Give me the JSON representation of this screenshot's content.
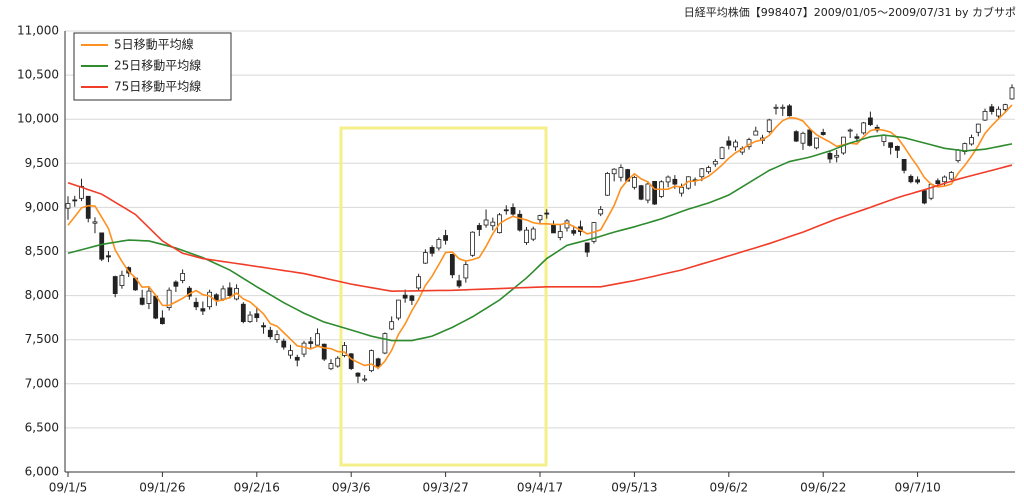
{
  "chart_data": {
    "type": "candlestick",
    "title": "日経平均株価【998407】2009/01/05～2009/07/31 by カブサポ",
    "categories": [
      "09/1/5",
      null,
      null,
      null,
      null,
      null,
      null,
      null,
      null,
      null,
      null,
      null,
      null,
      null,
      "09/1/26",
      null,
      null,
      null,
      null,
      null,
      null,
      null,
      null,
      null,
      null,
      null,
      null,
      null,
      "09/2/16",
      null,
      null,
      null,
      null,
      null,
      null,
      null,
      null,
      null,
      null,
      null,
      null,
      null,
      "09/3/6",
      null,
      null,
      null,
      null,
      null,
      null,
      null,
      null,
      null,
      null,
      null,
      null,
      null,
      "09/3/27",
      null,
      null,
      null,
      null,
      null,
      null,
      null,
      null,
      null,
      null,
      null,
      null,
      null,
      "09/4/17",
      null,
      null,
      null,
      null,
      null,
      null,
      null,
      null,
      null,
      null,
      null,
      null,
      null,
      "09/5/13",
      null,
      null,
      null,
      null,
      null,
      null,
      null,
      null,
      null,
      null,
      null,
      null,
      null,
      "09/6/2",
      null,
      null,
      null,
      null,
      null,
      null,
      null,
      null,
      null,
      null,
      null,
      null,
      null,
      "09/6/22",
      null,
      null,
      null,
      null,
      null,
      null,
      null,
      null,
      null,
      null,
      null,
      null,
      null,
      "09/7/10",
      null,
      null,
      null,
      null,
      null,
      null,
      null,
      null,
      null,
      null,
      null,
      null,
      null,
      null
    ],
    "candles": {
      "open": [
        8991,
        9085,
        9103,
        9126,
        8821,
        8711,
        8452,
        8216,
        8114,
        8317,
        8198,
        7972,
        7911,
        7993,
        7746,
        7864,
        8154,
        8171,
        8084,
        7924,
        7852,
        7874,
        8009,
        7961,
        8088,
        7962,
        7902,
        7705,
        7794,
        7660,
        7607,
        7501,
        7484,
        7325,
        7300,
        7337,
        7477,
        7439,
        7449,
        7171,
        7201,
        7321,
        7340,
        7121,
        7047,
        7149,
        7283,
        7349,
        7621,
        7746,
        8005,
        7997,
        8087,
        8368,
        8546,
        8540,
        8681,
        8467,
        8168,
        8200,
        8457,
        8795,
        8800,
        8792,
        8714,
        8973,
        8999,
        8922,
        8601,
        8640,
        8860,
        8936,
        8796,
        8658,
        8767,
        8738,
        8780,
        8597,
        8615,
        8926,
        9138,
        9382,
        9342,
        9429,
        9228,
        9246,
        9083,
        9295,
        9124,
        9289,
        9318,
        9162,
        9218,
        9313,
        9348,
        9405,
        9492,
        9555,
        9753,
        9686,
        9627,
        9688,
        9820,
        9760,
        9860,
        10128,
        10133,
        10151,
        9859,
        9728,
        9878,
        9675,
        9850,
        9612,
        9570,
        9617,
        9875,
        9801,
        9845,
        10014,
        9908,
        9747,
        9733,
        9692,
        9544,
        9352,
        9313,
        9190,
        9104,
        9303,
        9291,
        9322,
        9530,
        9633,
        9719,
        9852,
        9990,
        10141,
        10036,
        10110,
        10230
      ],
      "high": [
        9127,
        9131,
        9325,
        9126,
        8888,
        8711,
        8506,
        8226,
        8282,
        8331,
        8207,
        8066,
        8104,
        7995,
        7833,
        8092,
        8173,
        8297,
        8108,
        7976,
        7933,
        8067,
        8027,
        8114,
        8150,
        8128,
        7926,
        7822,
        7871,
        7696,
        7646,
        7607,
        7512,
        7443,
        7329,
        7486,
        7531,
        7628,
        7457,
        7279,
        7313,
        7474,
        7348,
        7131,
        7100,
        7387,
        7296,
        7582,
        7764,
        7950,
        8069,
        8008,
        8248,
        8525,
        8570,
        8660,
        8745,
        8473,
        8236,
        8389,
        8729,
        8824,
        8977,
        8884,
        8937,
        9024,
        9045,
        8969,
        8778,
        8782,
        8917,
        8979,
        8850,
        8813,
        8867,
        8794,
        8851,
        8600,
        8834,
        9015,
        9401,
        9445,
        9488,
        9437,
        9358,
        9255,
        9300,
        9296,
        9307,
        9362,
        9366,
        9270,
        9353,
        9340,
        9447,
        9473,
        9548,
        9690,
        9806,
        9768,
        9692,
        9790,
        9915,
        9823,
        10004,
        10170,
        10167,
        10170,
        9874,
        9858,
        9886,
        9787,
        9891,
        9640,
        9651,
        9798,
        9894,
        9836,
        9969,
        10086,
        9938,
        9826,
        9738,
        9701,
        9548,
        9374,
        9351,
        9193,
        9275,
        9329,
        9362,
        9411,
        9663,
        9735,
        9825,
        9950,
        10120,
        10173,
        10145,
        10175,
        10395
      ],
      "low": [
        8860,
        9008,
        9071,
        8831,
        8707,
        8391,
        8380,
        7981,
        8078,
        8211,
        8054,
        7889,
        7847,
        7733,
        7671,
        7831,
        8041,
        8141,
        7954,
        7835,
        7780,
        7842,
        7885,
        7939,
        7966,
        7946,
        7686,
        7691,
        7700,
        7568,
        7506,
        7463,
        7387,
        7284,
        7198,
        7303,
        7388,
        7427,
        7259,
        7155,
        7183,
        7301,
        7156,
        7008,
        7021,
        7132,
        7166,
        7336,
        7608,
        7720,
        7919,
        7893,
        8050,
        8360,
        8443,
        8511,
        8579,
        8197,
        8084,
        8147,
        8440,
        8676,
        8770,
        8740,
        8704,
        8918,
        8906,
        8726,
        8575,
        8618,
        8824,
        8872,
        8710,
        8627,
        8726,
        8680,
        8679,
        8439,
        8590,
        8901,
        9131,
        9295,
        9294,
        9294,
        9203,
        9082,
        9047,
        9028,
        9107,
        9228,
        9210,
        9123,
        9202,
        9246,
        9297,
        9381,
        9460,
        9546,
        9658,
        9642,
        9596,
        9655,
        9818,
        9720,
        9840,
        10053,
        10037,
        10031,
        9741,
        9652,
        9690,
        9658,
        9814,
        9504,
        9511,
        9597,
        9787,
        9738,
        9825,
        9922,
        9849,
        9695,
        9600,
        9560,
        9386,
        9273,
        9263,
        9036,
        9082,
        9233,
        9249,
        9310,
        9507,
        9598,
        9700,
        9806,
        9980,
        10052,
        10000,
        10071,
        10220
      ],
      "close": [
        9043,
        9080,
        9239,
        8876,
        8836,
        8413,
        8438,
        8023,
        8230,
        8256,
        8065,
        7901,
        8051,
        7745,
        7682,
        8061,
        8106,
        8251,
        7994,
        7873,
        7825,
        8038,
        7949,
        8076,
        8000,
        8082,
        7705,
        7779,
        7750,
        7645,
        7534,
        7557,
        7416,
        7376,
        7268,
        7461,
        7457,
        7568,
        7280,
        7229,
        7290,
        7433,
        7173,
        7086,
        7054,
        7376,
        7198,
        7569,
        7704,
        7949,
        7972,
        7945,
        8215,
        8488,
        8480,
        8636,
        8626,
        8236,
        8109,
        8351,
        8719,
        8749,
        8857,
        8833,
        8916,
        8964,
        8924,
        8743,
        8742,
        8755,
        8907,
        8924,
        8711,
        8727,
        8847,
        8707,
        8726,
        8493,
        8828,
        8977,
        9385,
        9433,
        9451,
        9298,
        9340,
        9093,
        9265,
        9038,
        9290,
        9344,
        9264,
        9225,
        9347,
        9311,
        9438,
        9451,
        9522,
        9677,
        9704,
        9741,
        9668,
        9768,
        9865,
        9787,
        9991,
        10135,
        10135,
        10039,
        9752,
        9840,
        9703,
        9786,
        9826,
        9549,
        9590,
        9797,
        9877,
        9783,
        9958,
        9939,
        9876,
        9816,
        9680,
        9647,
        9420,
        9291,
        9287,
        9050,
        9261,
        9269,
        9344,
        9395,
        9652,
        9723,
        9792,
        9944,
        10088,
        10087,
        10113,
        10165,
        10356
      ],
      "up_color": "#ffffff",
      "down_color": "#222222"
    },
    "series": [
      {
        "name": "5日移動平均線",
        "color": "#ff9020",
        "values": [
          8798,
          8894,
          8994,
          9020,
          9015,
          8889,
          8760,
          8517,
          8388,
          8272,
          8202,
          8095,
          8101,
          8004,
          7889,
          7888,
          7929,
          7969,
          8019,
          8057,
          8010,
          7996,
          7936,
          7952,
          7978,
          8029,
          7962,
          7928,
          7863,
          7792,
          7683,
          7653,
          7580,
          7506,
          7430,
          7416,
          7396,
          7426,
          7407,
          7399,
          7365,
          7360,
          7281,
          7242,
          7207,
          7224,
          7177,
          7257,
          7380,
          7559,
          7678,
          7828,
          7957,
          8114,
          8220,
          8353,
          8489,
          8493,
          8417,
          8392,
          8408,
          8433,
          8557,
          8702,
          8815,
          8864,
          8899,
          8876,
          8858,
          8826,
          8814,
          8814,
          8808,
          8805,
          8823,
          8783,
          8744,
          8700,
          8720,
          8746,
          8882,
          9023,
          9215,
          9309,
          9381,
          9323,
          9289,
          9207,
          9205,
          9206,
          9240,
          9232,
          9294,
          9298,
          9317,
          9354,
          9414,
          9480,
          9558,
          9619,
          9662,
          9712,
          9749,
          9766,
          9816,
          9909,
          9983,
          10017,
          10010,
          9980,
          9894,
          9824,
          9781,
          9741,
          9691,
          9710,
          9728,
          9719,
          9801,
          9871,
          9887,
          9874,
          9854,
          9792,
          9688,
          9571,
          9465,
          9339,
          9262,
          9232,
          9242,
          9264,
          9384,
          9477,
          9581,
          9701,
          9840,
          9927,
          10005,
          10079,
          10162
        ]
      },
      {
        "name": "25日移動平均線",
        "color": "#2e8b2e",
        "values": [
          8480,
          8500,
          8520,
          8540,
          8560,
          8580,
          8593,
          8605,
          8618,
          8630,
          8627,
          8623,
          8620,
          8600,
          8580,
          8560,
          8540,
          8513,
          8485,
          8458,
          8430,
          8395,
          8360,
          8325,
          8290,
          8243,
          8195,
          8148,
          8100,
          8055,
          8010,
          7965,
          7920,
          7880,
          7840,
          7800,
          7767,
          7733,
          7700,
          7678,
          7655,
          7633,
          7610,
          7587,
          7563,
          7540,
          7523,
          7507,
          7490,
          7490,
          7490,
          7490,
          7507,
          7523,
          7540,
          7573,
          7607,
          7640,
          7680,
          7720,
          7760,
          7808,
          7855,
          7903,
          7950,
          8013,
          8075,
          8138,
          8200,
          8273,
          8347,
          8420,
          8470,
          8520,
          8570,
          8590,
          8610,
          8630,
          8650,
          8673,
          8697,
          8720,
          8740,
          8760,
          8780,
          8803,
          8825,
          8848,
          8870,
          8898,
          8925,
          8953,
          8980,
          9003,
          9027,
          9050,
          9080,
          9110,
          9140,
          9187,
          9233,
          9280,
          9327,
          9373,
          9420,
          9453,
          9487,
          9520,
          9537,
          9553,
          9570,
          9593,
          9617,
          9640,
          9670,
          9700,
          9730,
          9753,
          9777,
          9800,
          9810,
          9820,
          9810,
          9800,
          9790,
          9770,
          9750,
          9730,
          9710,
          9690,
          9670,
          9660,
          9650,
          9640,
          9647,
          9653,
          9660,
          9675,
          9690,
          9705,
          9720
        ]
      },
      {
        "name": "75日移動平均線",
        "color": "#f03c28",
        "values": [
          9280,
          9254,
          9228,
          9202,
          9176,
          9150,
          9104,
          9058,
          9012,
          8966,
          8920,
          8845,
          8770,
          8695,
          8620,
          8573,
          8527,
          8480,
          8460,
          8440,
          8420,
          8409,
          8398,
          8386,
          8375,
          8364,
          8353,
          8341,
          8330,
          8319,
          8307,
          8296,
          8284,
          8273,
          8261,
          8250,
          8233,
          8216,
          8199,
          8181,
          8164,
          8147,
          8130,
          8117,
          8103,
          8090,
          8077,
          8063,
          8050,
          8051,
          8052,
          8053,
          8054,
          8056,
          8057,
          8058,
          8059,
          8060,
          8063,
          8066,
          8069,
          8071,
          8074,
          8077,
          8080,
          8083,
          8086,
          8089,
          8091,
          8094,
          8097,
          8100,
          8100,
          8100,
          8100,
          8100,
          8100,
          8100,
          8100,
          8100,
          8114,
          8128,
          8142,
          8156,
          8170,
          8187,
          8204,
          8221,
          8239,
          8256,
          8273,
          8290,
          8313,
          8336,
          8359,
          8381,
          8404,
          8427,
          8450,
          8473,
          8497,
          8520,
          8543,
          8567,
          8590,
          8616,
          8642,
          8668,
          8694,
          8720,
          8750,
          8780,
          8810,
          8840,
          8870,
          8896,
          8922,
          8948,
          8974,
          9000,
          9028,
          9055,
          9083,
          9110,
          9133,
          9155,
          9178,
          9200,
          9224,
          9248,
          9272,
          9296,
          9320,
          9340,
          9360,
          9380,
          9400,
          9420,
          9440,
          9460,
          9480
        ]
      }
    ],
    "ylim": [
      6000,
      11000
    ],
    "yticks": [
      {
        "value": 6000,
        "label": "6,000"
      },
      {
        "value": 6500,
        "label": "6,500"
      },
      {
        "value": 7000,
        "label": "7,000"
      },
      {
        "value": 7500,
        "label": "7,500"
      },
      {
        "value": 8000,
        "label": "8,000"
      },
      {
        "value": 8500,
        "label": "8,500"
      },
      {
        "value": 9000,
        "label": "9,000"
      },
      {
        "value": 9500,
        "label": "9,500"
      },
      {
        "value": 10000,
        "label": "10,000"
      },
      {
        "value": 10500,
        "label": "10,500"
      },
      {
        "value": 11000,
        "label": "11,000"
      }
    ],
    "grid": true,
    "legend": "upper left"
  }
}
